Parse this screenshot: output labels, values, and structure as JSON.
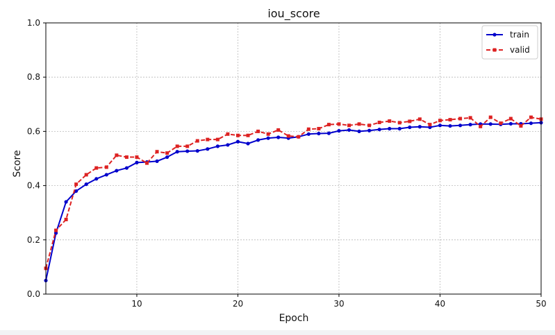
{
  "chart_data": {
    "type": "line",
    "title": "iou_score",
    "xlabel": "Epoch",
    "ylabel": "Score",
    "xlim": [
      1,
      50
    ],
    "ylim": [
      0.0,
      1.0
    ],
    "xticks": [
      "10",
      "20",
      "30",
      "40",
      "50"
    ],
    "yticks": [
      "0.0",
      "0.2",
      "0.4",
      "0.6",
      "0.8",
      "1.0"
    ],
    "grid": true,
    "legend_position": "top-right",
    "x": [
      1,
      2,
      3,
      4,
      5,
      6,
      7,
      8,
      9,
      10,
      11,
      12,
      13,
      14,
      15,
      16,
      17,
      18,
      19,
      20,
      21,
      22,
      23,
      24,
      25,
      26,
      27,
      28,
      29,
      30,
      31,
      32,
      33,
      34,
      35,
      36,
      37,
      38,
      39,
      40,
      41,
      42,
      43,
      44,
      45,
      46,
      47,
      48,
      49,
      50
    ],
    "series": [
      {
        "name": "train",
        "color": "#0000cc",
        "style": "solid-circle",
        "values": [
          0.05,
          0.225,
          0.34,
          0.38,
          0.405,
          0.425,
          0.44,
          0.455,
          0.465,
          0.485,
          0.487,
          0.49,
          0.505,
          0.525,
          0.527,
          0.528,
          0.535,
          0.545,
          0.55,
          0.562,
          0.555,
          0.568,
          0.575,
          0.578,
          0.575,
          0.58,
          0.59,
          0.592,
          0.593,
          0.602,
          0.605,
          0.6,
          0.603,
          0.607,
          0.61,
          0.61,
          0.615,
          0.617,
          0.615,
          0.622,
          0.62,
          0.622,
          0.625,
          0.627,
          0.627,
          0.626,
          0.628,
          0.628,
          0.63,
          0.632
        ]
      },
      {
        "name": "valid",
        "color": "#dd2222",
        "style": "dashed-square",
        "values": [
          0.095,
          0.235,
          0.275,
          0.405,
          0.44,
          0.465,
          0.468,
          0.512,
          0.505,
          0.505,
          0.483,
          0.525,
          0.52,
          0.545,
          0.545,
          0.565,
          0.57,
          0.57,
          0.59,
          0.585,
          0.585,
          0.6,
          0.59,
          0.605,
          0.583,
          0.58,
          0.608,
          0.61,
          0.625,
          0.627,
          0.622,
          0.627,
          0.622,
          0.633,
          0.638,
          0.632,
          0.637,
          0.645,
          0.625,
          0.64,
          0.643,
          0.647,
          0.65,
          0.618,
          0.652,
          0.63,
          0.647,
          0.62,
          0.652,
          0.645
        ]
      }
    ]
  }
}
